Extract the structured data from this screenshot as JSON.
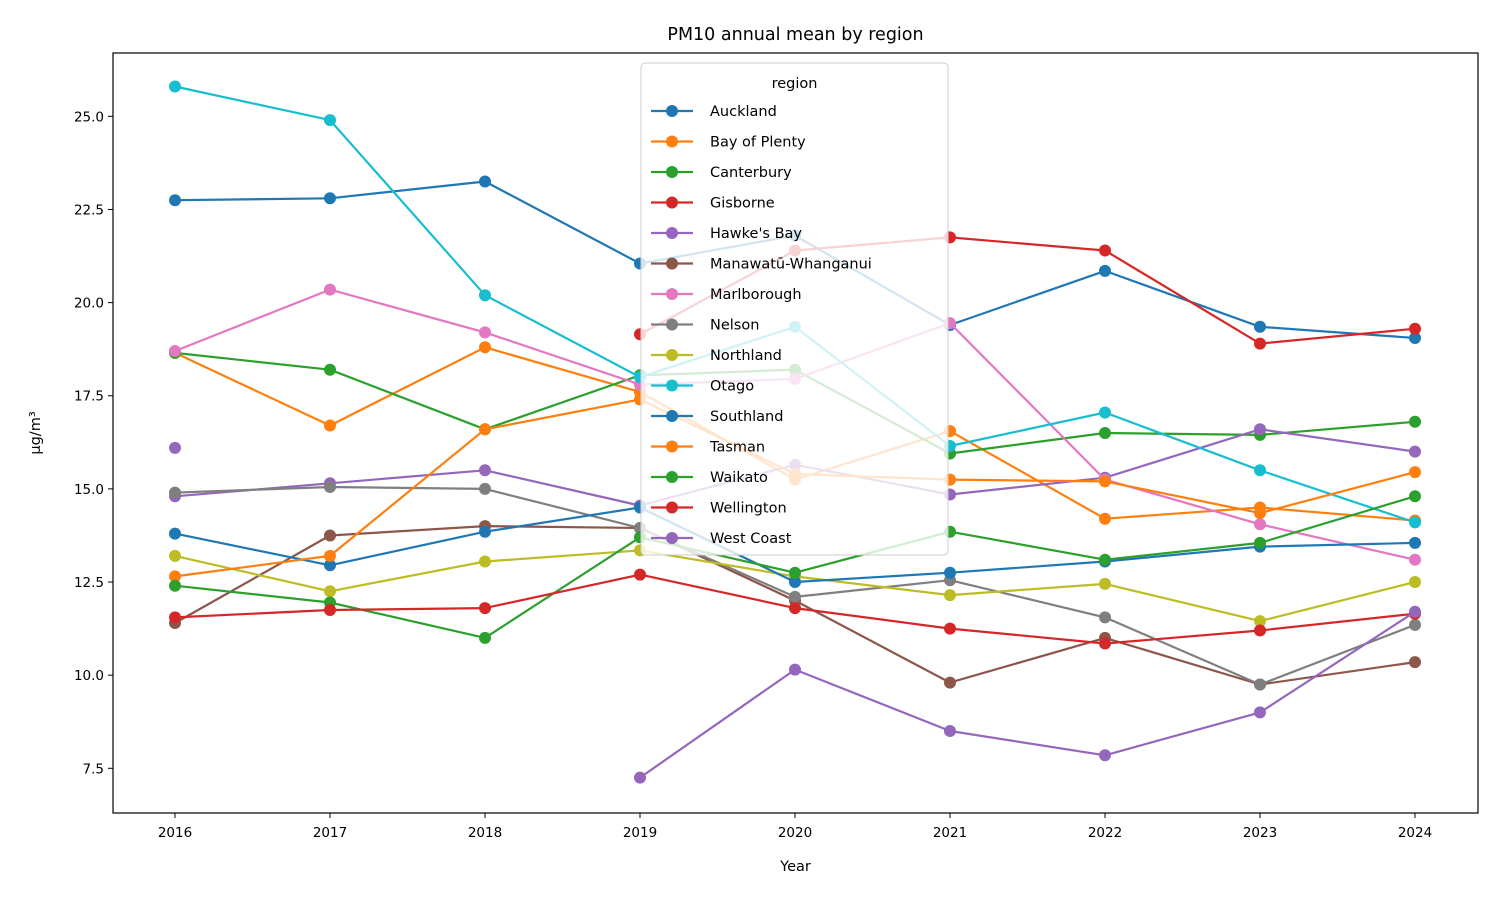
{
  "chart_data": {
    "type": "line",
    "title": "PM10 annual mean by region",
    "xlabel": "Year",
    "ylabel": "µg/m³",
    "x": [
      2016,
      2017,
      2018,
      2019,
      2020,
      2021,
      2022,
      2023,
      2024
    ],
    "ylim": [
      6.3,
      26.7
    ],
    "y_ticks": [
      "7.5",
      "10.0",
      "12.5",
      "15.0",
      "17.5",
      "20.0",
      "22.5",
      "25.0"
    ],
    "grid": false,
    "legend": {
      "title": "region",
      "placement": "top-center"
    },
    "series": [
      {
        "name": "Auckland",
        "color": "#1f77b4",
        "values": [
          22.75,
          22.8,
          23.25,
          21.05,
          21.8,
          19.4,
          20.85,
          19.35,
          19.05
        ]
      },
      {
        "name": "Bay of Plenty",
        "color": "#ff7f0e",
        "values": [
          18.65,
          16.7,
          18.8,
          17.6,
          15.25,
          16.55,
          14.2,
          14.5,
          14.15
        ]
      },
      {
        "name": "Canterbury",
        "color": "#2ca02c",
        "values": [
          18.65,
          18.2,
          16.6,
          18.05,
          18.2,
          15.95,
          16.5,
          16.45,
          16.8
        ]
      },
      {
        "name": "Gisborne",
        "color": "#d62728",
        "values": [
          null,
          null,
          null,
          19.15,
          21.4,
          21.75,
          21.4,
          18.9,
          19.3
        ]
      },
      {
        "name": "Hawke's Bay",
        "color": "#9467bd",
        "values": [
          14.8,
          15.15,
          15.5,
          14.55,
          15.65,
          14.85,
          15.3,
          16.6,
          16.0
        ]
      },
      {
        "name": "Manawatū-Whanganui",
        "color": "#8c564b",
        "values": [
          11.4,
          13.75,
          14.0,
          13.95,
          12.0,
          9.8,
          11.0,
          9.75,
          10.35
        ]
      },
      {
        "name": "Marlborough",
        "color": "#e377c2",
        "values": [
          18.7,
          20.35,
          19.2,
          17.8,
          17.95,
          19.45,
          15.25,
          14.05,
          13.1
        ]
      },
      {
        "name": "Nelson",
        "color": "#7f7f7f",
        "values": [
          14.9,
          15.05,
          15.0,
          13.95,
          12.1,
          12.55,
          11.55,
          9.75,
          11.35
        ]
      },
      {
        "name": "Northland",
        "color": "#bcbd22",
        "values": [
          13.2,
          12.25,
          13.05,
          13.35,
          12.65,
          12.15,
          12.45,
          11.45,
          12.5
        ]
      },
      {
        "name": "Otago",
        "color": "#17becf",
        "values": [
          25.8,
          24.9,
          20.2,
          18.0,
          19.35,
          16.15,
          17.05,
          15.5,
          14.1
        ]
      },
      {
        "name": "Southland",
        "color": "#1f77b4",
        "values": [
          13.8,
          12.95,
          13.85,
          14.5,
          12.5,
          12.75,
          13.05,
          13.45,
          13.55
        ]
      },
      {
        "name": "Tasman",
        "color": "#ff7f0e",
        "values": [
          12.65,
          13.2,
          16.6,
          17.4,
          15.4,
          15.25,
          15.2,
          14.35,
          15.45
        ]
      },
      {
        "name": "Waikato",
        "color": "#2ca02c",
        "values": [
          12.4,
          11.95,
          11.0,
          13.7,
          12.75,
          13.85,
          13.1,
          13.55,
          14.8
        ]
      },
      {
        "name": "Wellington",
        "color": "#d62728",
        "values": [
          11.55,
          11.75,
          11.8,
          12.7,
          11.8,
          11.25,
          10.85,
          11.2,
          11.65
        ]
      },
      {
        "name": "West Coast",
        "color": "#9467bd",
        "values": [
          16.1,
          null,
          null,
          7.25,
          10.15,
          8.5,
          7.85,
          9.0,
          11.7
        ]
      }
    ]
  }
}
